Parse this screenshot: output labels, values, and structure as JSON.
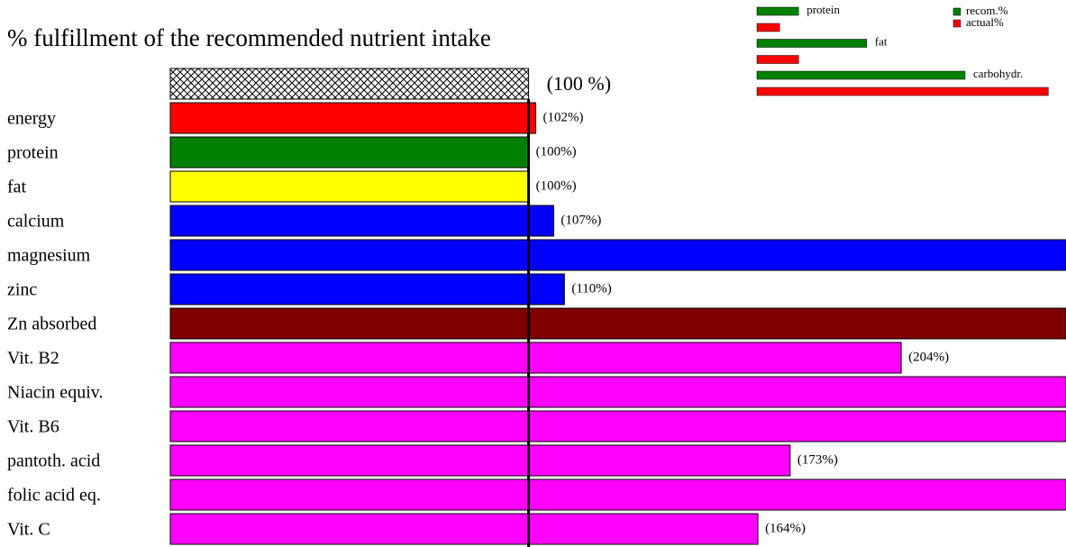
{
  "chart_data": {
    "type": "bar",
    "title": "% fulfillment of the recommended nutrient intake",
    "reference": {
      "value": 100,
      "label": "(100 %)"
    },
    "categories": [
      "energy",
      "protein",
      "fat",
      "calcium",
      "magnesium",
      "zinc",
      "Zn absorbed",
      "Vit. B2",
      "Niacin equiv.",
      "Vit. B6",
      "pantoth. acid",
      "folic acid eq.",
      "Vit. C"
    ],
    "values": [
      102,
      100,
      100,
      107,
      250,
      110,
      250,
      204,
      250,
      250,
      173,
      250,
      164
    ],
    "value_labels": [
      "(102%)",
      "(100%)",
      "(100%)",
      "(107%)",
      null,
      "(110%)",
      null,
      "(204%)",
      null,
      null,
      "(173%)",
      null,
      "(164%)"
    ],
    "colors": [
      "#ff0000",
      "#008000",
      "#ffff00",
      "#0000ff",
      "#0000ff",
      "#0000ff",
      "#800000",
      "#ff00ff",
      "#ff00ff",
      "#ff00ff",
      "#ff00ff",
      "#ff00ff",
      "#ff00ff"
    ],
    "xlim": [
      0,
      250
    ],
    "legend_chart": {
      "type": "bar",
      "categories": [
        "protein",
        "fat",
        "carbohydr."
      ],
      "series": [
        {
          "name": "recom.%",
          "color": "#008000",
          "values": [
            11,
            29,
            55
          ]
        },
        {
          "name": "actual%",
          "color": "#ff0000",
          "values": [
            6,
            11,
            77
          ]
        }
      ],
      "xlim": [
        0,
        80
      ]
    }
  }
}
